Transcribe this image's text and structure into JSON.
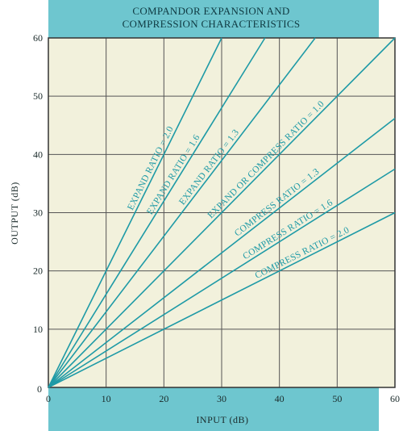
{
  "chart_data": {
    "type": "line",
    "title_lines": [
      "COMPANDOR EXPANSION AND",
      "COMPRESSION CHARACTERISTICS"
    ],
    "xlabel": "INPUT (dB)",
    "ylabel": "OUTPUT (dB)",
    "xlim": [
      0,
      60
    ],
    "ylim": [
      0,
      60
    ],
    "xticks": [
      0,
      10,
      20,
      30,
      40,
      50,
      60
    ],
    "yticks": [
      10,
      20,
      30,
      40,
      50,
      60
    ],
    "grid": true,
    "series": [
      {
        "name": "EXPAND RATIO = 2.0",
        "x": [
          0,
          30
        ],
        "y": [
          0,
          60
        ]
      },
      {
        "name": "EXPAND RATIO = 1.6",
        "x": [
          0,
          37.5
        ],
        "y": [
          0,
          60
        ]
      },
      {
        "name": "EXPAND RATIO = 1.3",
        "x": [
          0,
          46.2
        ],
        "y": [
          0,
          60
        ]
      },
      {
        "name": "EXPAND OR COMPRESS RATIO = 1.0",
        "x": [
          0,
          60
        ],
        "y": [
          0,
          60
        ]
      },
      {
        "name": "COMPRESS RATIO = 1.3",
        "x": [
          0,
          60
        ],
        "y": [
          0,
          46.2
        ]
      },
      {
        "name": "COMPRESS RATIO = 1.6",
        "x": [
          0,
          60
        ],
        "y": [
          0,
          37.5
        ]
      },
      {
        "name": "COMPRESS RATIO = 2.0",
        "x": [
          0,
          60
        ],
        "y": [
          0,
          30
        ]
      }
    ]
  },
  "colors": {
    "band": "#6ec6cf",
    "plot_bg": "#f2f1dc",
    "line": "#1e9aa6",
    "grid": "#555555",
    "frame": "#333333"
  }
}
